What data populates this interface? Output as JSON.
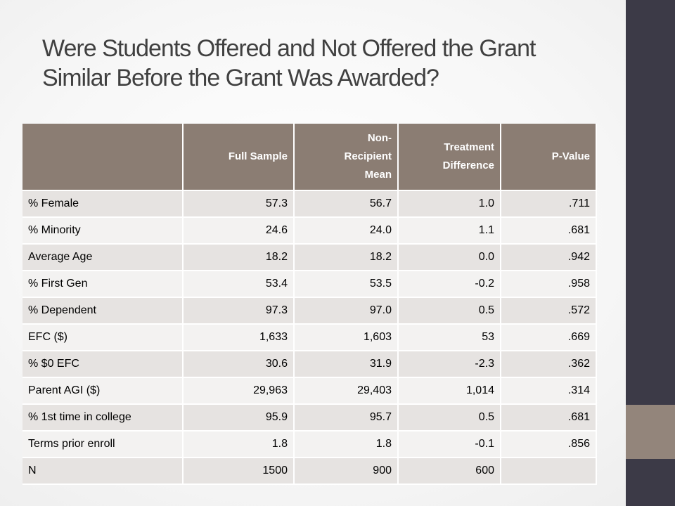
{
  "colors": {
    "header_bg": "#8b7d73",
    "sidebar_dark": "#3c3a47",
    "sidebar_accent": "#93857b",
    "title_text": "#404040",
    "row_shade_a": "#e6e3e1",
    "row_shade_b": "#f3f2f1"
  },
  "slide": {
    "title_line1": "Were Students Offered and Not Offered the Grant",
    "title_line2": "Similar Before the Grant Was Awarded?"
  },
  "chart_data": {
    "type": "table",
    "columns": [
      "",
      "Full Sample",
      "Non-Recipient Mean",
      "Treatment Difference",
      "P-Value"
    ],
    "header_lines": [
      [
        ""
      ],
      [
        "Full Sample"
      ],
      [
        "Non-",
        "Recipient",
        "Mean"
      ],
      [
        "Treatment",
        "Difference"
      ],
      [
        "P-Value"
      ]
    ],
    "rows": [
      [
        "% Female",
        "57.3",
        "56.7",
        "1.0",
        ".711"
      ],
      [
        "% Minority",
        "24.6",
        "24.0",
        "1.1",
        ".681"
      ],
      [
        "Average Age",
        "18.2",
        "18.2",
        "0.0",
        ".942"
      ],
      [
        "% First Gen",
        "53.4",
        "53.5",
        "-0.2",
        ".958"
      ],
      [
        "% Dependent",
        "97.3",
        "97.0",
        "0.5",
        ".572"
      ],
      [
        "EFC ($)",
        "1,633",
        "1,603",
        "53",
        ".669"
      ],
      [
        "% $0 EFC",
        "30.6",
        "31.9",
        "-2.3",
        ".362"
      ],
      [
        "Parent AGI ($)",
        "29,963",
        "29,403",
        "1,014",
        ".314"
      ],
      [
        "% 1st time in college",
        "95.9",
        "95.7",
        "0.5",
        ".681"
      ],
      [
        "Terms prior enroll",
        "1.8",
        "1.8",
        "-0.1",
        ".856"
      ],
      [
        "N",
        "1500",
        "900",
        "600",
        ""
      ]
    ]
  }
}
